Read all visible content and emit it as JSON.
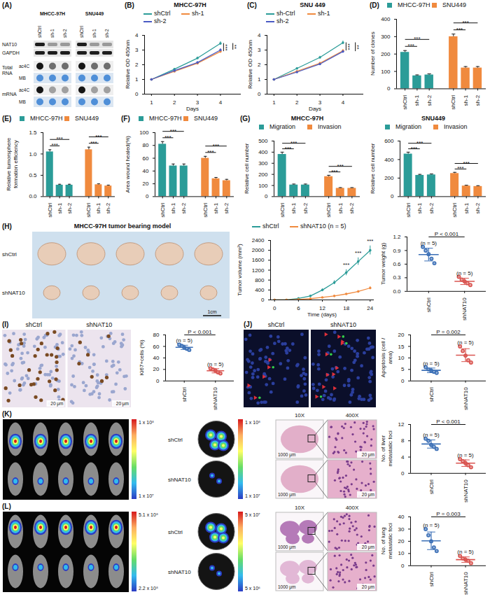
{
  "panel_labels": [
    "(A)",
    "(B)",
    "(C)",
    "(D)",
    "(E)",
    "(F)",
    "(G)",
    "(H)",
    "(I)",
    "(J)",
    "(K)",
    "(L)"
  ],
  "images": {
    "A": {
      "cell_lines": [
        "MHCC-97H",
        "SNU449"
      ],
      "lanes": [
        "shCtrl",
        "sh-1",
        "sh-2"
      ],
      "blots": [
        "NAT10",
        "GAPDH"
      ],
      "dot_blots": [
        {
          "name": "Total RNA",
          "rows": [
            "ac4C",
            "MB"
          ]
        },
        {
          "name": "mRNA",
          "rows": [
            "ac4C",
            "MB"
          ]
        }
      ]
    },
    "H": {
      "title": "MHCC-97H tumor bearing model",
      "rows": [
        "shCtrl",
        "shNAT10"
      ],
      "scale_bar": "1cm"
    },
    "I": {
      "columns": [
        "shCtrl",
        "shNAT10"
      ],
      "scale_bar": "20 μm"
    },
    "J": {
      "columns": [
        "shCtrl",
        "shNAT10"
      ]
    },
    "K": {
      "rows": [
        "shCtrl",
        "shNAT10"
      ],
      "colorbar_mice": [
        "1 x 10⁸",
        "1 x 10⁷"
      ],
      "colorbar_organ": [
        "1 x 10⁸",
        "1 x 10⁷"
      ],
      "columns": [
        "10X",
        "400X"
      ],
      "scale_bars": [
        "1000 μm",
        "20 μm"
      ]
    },
    "L": {
      "rows": [
        "shCtrl",
        "shNAT10"
      ],
      "colorbar_mice": [
        "5.1 x 10⁸",
        "2.2 x 10⁸"
      ],
      "colorbar_organ": [
        "5 x 10⁷",
        "5 x 10⁶"
      ],
      "columns": [
        "10X",
        "400X"
      ],
      "scale_bars": [
        "1000 μm",
        "20 μm"
      ]
    }
  },
  "chart_data": [
    {
      "type": "line",
      "title": "MHCC-97H",
      "x_label": "Days",
      "y_label": "Relative OD 450nm",
      "x": [
        1,
        2,
        3,
        4
      ],
      "series": [
        {
          "name": "shCtrl",
          "color": "#2b9c98",
          "values": [
            1,
            1.7,
            2.45,
            3.45
          ],
          "errors": [
            0,
            0.05,
            0.08,
            0.12
          ]
        },
        {
          "name": "sh-1",
          "color": "#f08a3e",
          "values": [
            1,
            1.55,
            2.1,
            2.9
          ],
          "errors": [
            0,
            0.05,
            0.07,
            0.1
          ]
        },
        {
          "name": "sh-2",
          "color": "#4a5bc4",
          "values": [
            1,
            1.6,
            2.15,
            3.0
          ],
          "errors": [
            0,
            0.05,
            0.07,
            0.1
          ]
        }
      ],
      "xlim": [
        0.7,
        4.9
      ],
      "xticks": [
        1,
        2,
        3,
        4
      ],
      "ylim": [
        0,
        4
      ],
      "yticks": [
        0,
        1,
        2,
        3,
        4
      ],
      "legend": "top",
      "marker": "circle",
      "annotations": [
        {
          "text": "***",
          "from": "shCtrl",
          "to": "sh-1"
        },
        {
          "text": "**",
          "from": "shCtrl",
          "to": "sh-2"
        }
      ]
    },
    {
      "type": "line",
      "title": "SNU 449",
      "x_label": "Days",
      "y_label": "Relative OD 450nm",
      "x": [
        1,
        2,
        3,
        4
      ],
      "series": [
        {
          "name": "sh-Ctrl",
          "color": "#2b9c98",
          "values": [
            1,
            1.75,
            2.5,
            3.5
          ],
          "errors": [
            0,
            0.05,
            0.08,
            0.12
          ]
        },
        {
          "name": "sh-1",
          "color": "#f08a3e",
          "values": [
            1,
            1.55,
            2.1,
            2.95
          ],
          "errors": [
            0,
            0.05,
            0.07,
            0.1
          ]
        },
        {
          "name": "sh-2",
          "color": "#4a5bc4",
          "values": [
            1,
            1.5,
            2.05,
            2.9
          ],
          "errors": [
            0,
            0.05,
            0.07,
            0.1
          ]
        }
      ],
      "xlim": [
        0.7,
        4.9
      ],
      "xticks": [
        1,
        2,
        3,
        4
      ],
      "ylim": [
        0,
        4
      ],
      "yticks": [
        0,
        1,
        2,
        3,
        4
      ],
      "legend": "top",
      "marker": "circle",
      "annotations": [
        {
          "text": "***",
          "from": "sh-Ctrl",
          "to": "sh-1"
        },
        {
          "text": "**",
          "from": "sh-Ctrl",
          "to": "sh-2"
        }
      ]
    },
    {
      "type": "bar",
      "y_label": "Number of clones",
      "categories": [
        "shCtrl",
        "sh-1",
        "sh-2"
      ],
      "series": [
        {
          "name": "MHCC-97H",
          "color": "#2b9c98",
          "values": [
            210,
            75,
            80
          ],
          "errors": [
            10,
            5,
            6
          ]
        },
        {
          "name": "SNU449",
          "color": "#f08a3e",
          "values": [
            300,
            120,
            120
          ],
          "errors": [
            15,
            8,
            8
          ]
        }
      ],
      "ylim": [
        0,
        400
      ],
      "yticks": [
        0,
        100,
        200,
        300,
        400
      ],
      "legend": "top",
      "annotations": [
        {
          "text": "***",
          "series": "MHCC-97H",
          "from": "shCtrl",
          "to": "sh-1"
        },
        {
          "text": "***",
          "series": "MHCC-97H",
          "from": "shCtrl",
          "to": "sh-2"
        },
        {
          "text": "***",
          "series": "SNU449",
          "from": "shCtrl",
          "to": "sh-1"
        },
        {
          "text": "***",
          "series": "SNU449",
          "from": "shCtrl",
          "to": "sh-2"
        }
      ]
    },
    {
      "type": "bar",
      "y_label": "Relative tumorsphere formation efficiency",
      "categories": [
        "shCtrl",
        "sh-1",
        "sh-2"
      ],
      "series": [
        {
          "name": "MHCC-97H",
          "color": "#2b9c98",
          "values": [
            1.05,
            0.27,
            0.27
          ],
          "errors": [
            0.05,
            0.02,
            0.02
          ]
        },
        {
          "name": "SNU449",
          "color": "#f08a3e",
          "values": [
            1.1,
            0.28,
            0.25
          ],
          "errors": [
            0.06,
            0.02,
            0.02
          ]
        }
      ],
      "ylim": [
        0,
        1.5
      ],
      "yticks": [
        {
          "value": 0,
          "label": "0.0"
        },
        0.5,
        {
          "value": 1,
          "label": "1.0"
        },
        1.5
      ],
      "legend": "top",
      "annotations": [
        {
          "text": "***",
          "series": "MHCC-97H",
          "from": "shCtrl",
          "to": "sh-1"
        },
        {
          "text": "***",
          "series": "MHCC-97H",
          "from": "shCtrl",
          "to": "sh-2"
        },
        {
          "text": "***",
          "series": "SNU449",
          "from": "shCtrl",
          "to": "sh-1"
        },
        {
          "text": "***",
          "series": "SNU449",
          "from": "shCtrl",
          "to": "sh-2"
        }
      ]
    },
    {
      "type": "bar",
      "y_label": "Area wound healed(%)",
      "categories": [
        "shCtrl",
        "sh-1",
        "sh-2"
      ],
      "series": [
        {
          "name": "MHCC-97H",
          "color": "#2b9c98",
          "values": [
            82,
            48,
            48
          ],
          "errors": [
            4,
            3,
            3
          ]
        },
        {
          "name": "SNU449",
          "color": "#f08a3e",
          "values": [
            60,
            28,
            25
          ],
          "errors": [
            3,
            2,
            2
          ]
        }
      ],
      "ylim": [
        0,
        100
      ],
      "yticks": [
        0,
        20,
        40,
        60,
        80,
        100
      ],
      "legend": "top",
      "annotations": [
        {
          "text": "***",
          "series": "MHCC-97H",
          "from": "shCtrl",
          "to": "sh-1"
        },
        {
          "text": "***",
          "series": "MHCC-97H",
          "from": "shCtrl",
          "to": "sh-2"
        },
        {
          "text": "***",
          "series": "SNU449",
          "from": "shCtrl",
          "to": "sh-1"
        },
        {
          "text": "***",
          "series": "SNU449",
          "from": "shCtrl",
          "to": "sh-2"
        }
      ]
    },
    {
      "type": "bar",
      "title": "MHCC-97H",
      "y_label": "Relative cell number",
      "categories": [
        "shCtrl",
        "sh-1",
        "sh-2"
      ],
      "series": [
        {
          "name": "Migration",
          "color": "#2b9c98",
          "values": [
            380,
            105,
            105
          ],
          "errors": [
            20,
            8,
            8
          ]
        },
        {
          "name": "Invasion",
          "color": "#f08a3e",
          "values": [
            180,
            75,
            75
          ],
          "errors": [
            12,
            6,
            6
          ]
        }
      ],
      "ylim": [
        0,
        500
      ],
      "yticks": [
        0,
        100,
        200,
        300,
        400,
        500
      ],
      "legend": "top",
      "annotations": [
        {
          "text": "***",
          "series": "Migration",
          "from": "shCtrl",
          "to": "sh-1"
        },
        {
          "text": "***",
          "series": "Migration",
          "from": "shCtrl",
          "to": "sh-2"
        },
        {
          "text": "***",
          "series": "Invasion",
          "from": "shCtrl",
          "to": "sh-1"
        },
        {
          "text": "***",
          "series": "Invasion",
          "from": "shCtrl",
          "to": "sh-2"
        }
      ]
    },
    {
      "type": "bar",
      "title": "SNU449",
      "y_label": "Relative cell number",
      "categories": [
        "shCtrl",
        "sh-1",
        "sh-2"
      ],
      "series": [
        {
          "name": "Migration",
          "color": "#2b9c98",
          "values": [
            460,
            230,
            235
          ],
          "errors": [
            20,
            10,
            10
          ]
        },
        {
          "name": "Invasion",
          "color": "#f08a3e",
          "values": [
            250,
            115,
            110
          ],
          "errors": [
            12,
            8,
            8
          ]
        }
      ],
      "ylim": [
        0,
        600
      ],
      "yticks": [
        0,
        200,
        400,
        600
      ],
      "legend": "top",
      "annotations": [
        {
          "text": "***",
          "series": "Migration",
          "from": "shCtrl",
          "to": "sh-1"
        },
        {
          "text": "***",
          "series": "Migration",
          "from": "shCtrl",
          "to": "sh-2"
        },
        {
          "text": "***",
          "series": "Invasion",
          "from": "shCtrl",
          "to": "sh-1"
        },
        {
          "text": "***",
          "series": "Invasion",
          "from": "shCtrl",
          "to": "sh-2"
        }
      ]
    },
    {
      "type": "line",
      "x_label": "Time (days)",
      "y_label": "Tumor volume (mm³)",
      "x": [
        0,
        3,
        6,
        9,
        12,
        15,
        18,
        21,
        24
      ],
      "series": [
        {
          "name": "shCtrl",
          "color": "#2b9c98",
          "values": [
            0,
            0,
            60,
            160,
            400,
            700,
            1100,
            1550,
            2000
          ],
          "errors": [
            0,
            0,
            10,
            25,
            50,
            80,
            120,
            150,
            180
          ]
        },
        {
          "name": "shNAT10 (n = 5)",
          "color": "#f08a3e",
          "values": [
            0,
            0,
            20,
            50,
            100,
            160,
            240,
            340,
            480
          ],
          "errors": [
            0,
            0,
            5,
            10,
            15,
            20,
            30,
            40,
            60
          ]
        }
      ],
      "xlim": [
        -1,
        25
      ],
      "xticks": [
        0,
        6,
        12,
        18,
        24
      ],
      "ylim": [
        0,
        2400
      ],
      "yticks": [
        0,
        400,
        800,
        1200,
        1600,
        2000,
        2400
      ],
      "legend": "top",
      "marker": "circle",
      "annotations": [
        {
          "text": "***",
          "x": 18
        },
        {
          "text": "***",
          "x": 21
        },
        {
          "text": "***",
          "x": 24
        }
      ]
    },
    {
      "type": "dot",
      "y_label": "Tumor weight (g)",
      "categories": [
        "shCtrl",
        "shNAT10"
      ],
      "points": [
        [
          0.98,
          0.9,
          0.82,
          0.72,
          0.62
        ],
        [
          0.32,
          0.26,
          0.22,
          0.18,
          0.14
        ]
      ],
      "means": [
        0.81,
        0.22
      ],
      "sds": [
        0.14,
        0.07
      ],
      "colors": [
        "#3b6fb6",
        "#d9534f"
      ],
      "n_labels": [
        "(n = 5)",
        "(n = 5)"
      ],
      "ylim": [
        0,
        1.2
      ],
      "yticks": [
        {
          "value": 0,
          "label": "0.0"
        },
        0.3,
        0.6,
        0.9,
        1.2
      ],
      "annotations": [
        {
          "text": "P < 0.001"
        }
      ]
    },
    {
      "type": "dot",
      "y_label": "Ki67+cells (%)",
      "categories": [
        "shCtrl",
        "shNAT10"
      ],
      "points": [
        [
          63,
          61,
          58,
          56,
          54
        ],
        [
          22,
          20,
          18,
          15,
          13
        ]
      ],
      "means": [
        58.4,
        17.6
      ],
      "sds": [
        3.6,
        3.6
      ],
      "colors": [
        "#3b6fb6",
        "#d9534f"
      ],
      "n_labels": [
        "(n = 5)",
        "(n = 5)"
      ],
      "ylim": [
        0,
        80
      ],
      "yticks": [
        0,
        20,
        40,
        60,
        80
      ],
      "annotations": [
        {
          "text": "P < 0.001"
        }
      ]
    },
    {
      "type": "dot",
      "y_label": "Apoptosis (cell / area)",
      "categories": [
        "shCtrl",
        "shNAT10"
      ],
      "points": [
        [
          6,
          5,
          4.5,
          4,
          3.5
        ],
        [
          15,
          13,
          11,
          9,
          8
        ]
      ],
      "means": [
        4.6,
        11.2
      ],
      "sds": [
        1.0,
        2.8
      ],
      "colors": [
        "#3b6fb6",
        "#d9534f"
      ],
      "n_labels": [
        "(n = 5)",
        "(n = 5)"
      ],
      "ylim": [
        0,
        20
      ],
      "yticks": [
        0,
        5,
        10,
        15,
        20
      ],
      "annotations": [
        {
          "text": "P = 0.002"
        }
      ]
    },
    {
      "type": "dot",
      "y_label": "No. of liver metastatic foci",
      "categories": [
        "shCtrl",
        "shNAT10"
      ],
      "points": [
        [
          8.5,
          8,
          7,
          6.5,
          6
        ],
        [
          3.5,
          3,
          2.5,
          2,
          1.5
        ]
      ],
      "means": [
        7.2,
        2.5
      ],
      "sds": [
        1.0,
        0.8
      ],
      "colors": [
        "#3b6fb6",
        "#d9534f"
      ],
      "n_labels": [
        "(n = 5)",
        "(n = 5)"
      ],
      "ylim": [
        0,
        12
      ],
      "yticks": [
        0,
        4,
        8,
        12
      ],
      "annotations": [
        {
          "text": "P < 0.001"
        }
      ]
    },
    {
      "type": "dot",
      "y_label": "No. of lung metastatic foci",
      "categories": [
        "shCtrl",
        "shNAT10"
      ],
      "points": [
        [
          30,
          25,
          20,
          15,
          12
        ],
        [
          8,
          6,
          5,
          4,
          2
        ]
      ],
      "means": [
        20.4,
        5
      ],
      "sds": [
        7.2,
        2.2
      ],
      "colors": [
        "#3b6fb6",
        "#d9534f"
      ],
      "n_labels": [
        "(n = 5)",
        "(n = 5)"
      ],
      "ylim": [
        0,
        40
      ],
      "yticks": [
        0,
        10,
        20,
        30,
        40
      ],
      "annotations": [
        {
          "text": "P = 0.003"
        }
      ]
    }
  ]
}
